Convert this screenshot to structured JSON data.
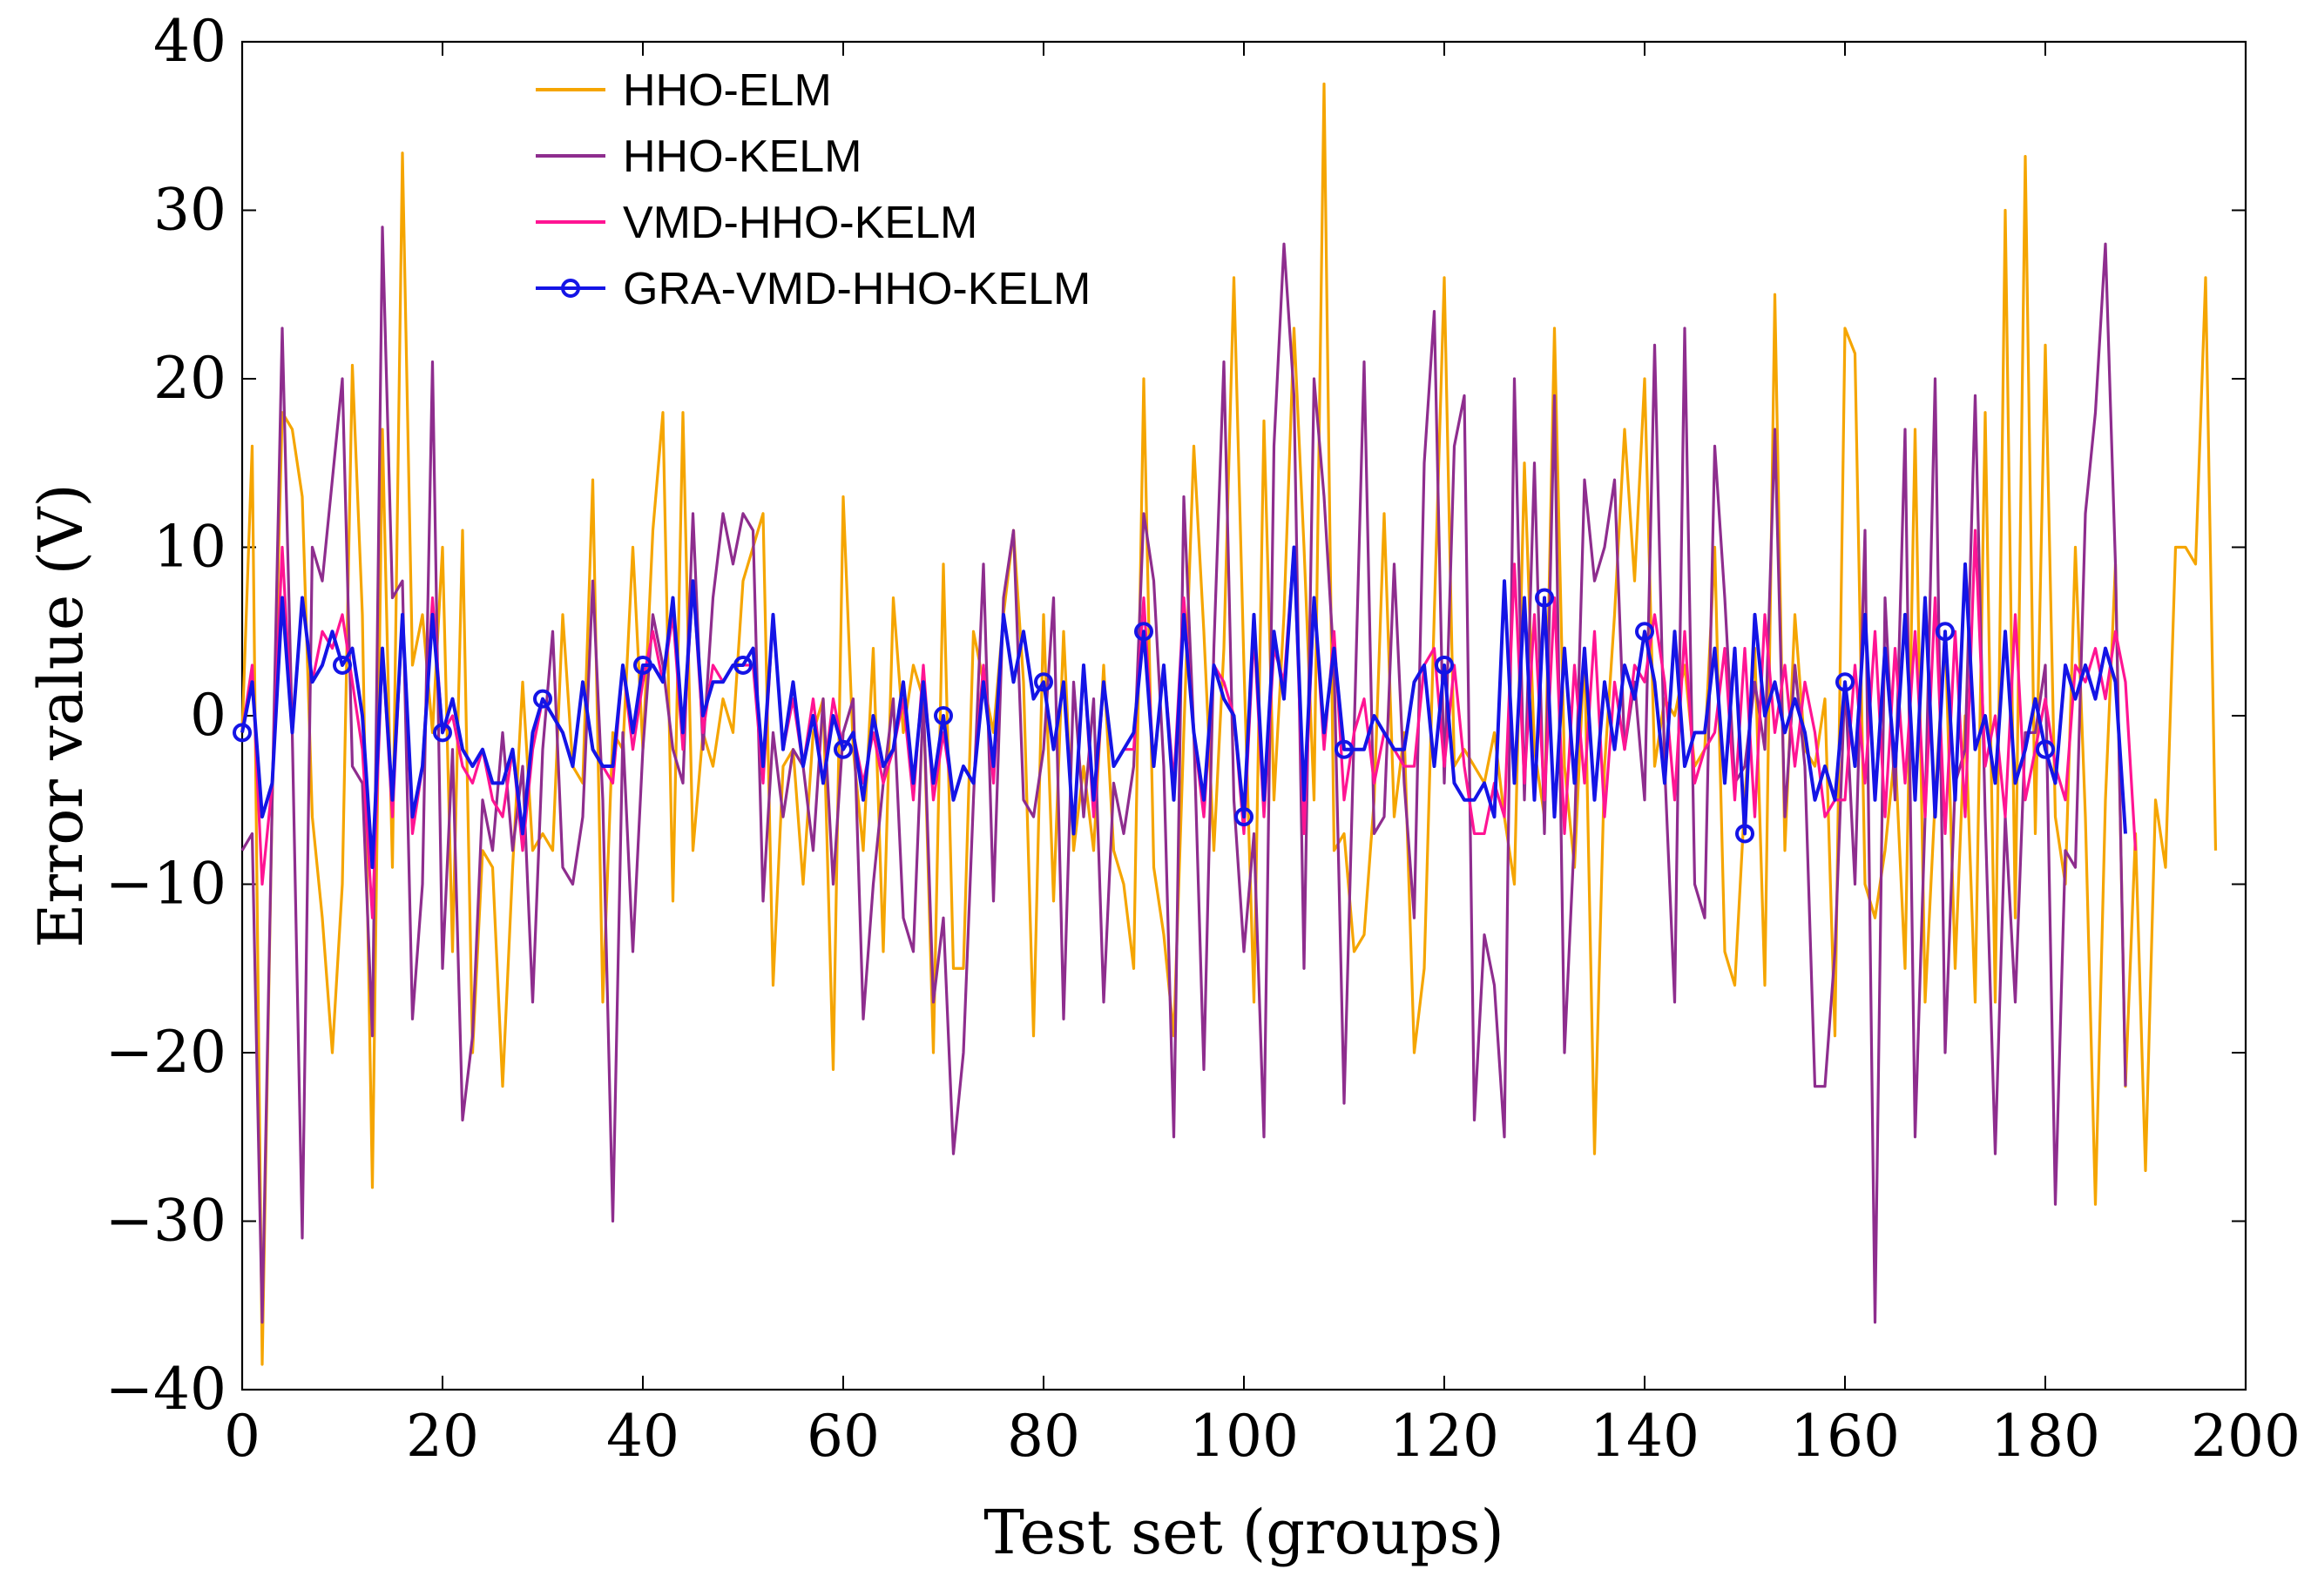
{
  "chart_data": {
    "type": "line",
    "title": "",
    "xlabel": "Test set (groups)",
    "ylabel": "Error value (V)",
    "xlim": [
      0,
      200
    ],
    "ylim": [
      -40,
      40
    ],
    "xticks": [
      0,
      20,
      40,
      60,
      80,
      100,
      120,
      140,
      160,
      180,
      200
    ],
    "yticks": [
      40,
      30,
      20,
      10,
      0,
      -10,
      -20,
      -30,
      -40
    ],
    "xtick_labels": [
      "0",
      "20",
      "40",
      "60",
      "80",
      "100",
      "120",
      "140",
      "160",
      "180",
      "200"
    ],
    "ytick_labels": [
      "40",
      "30",
      "20",
      "10",
      "0",
      "−10",
      "−20",
      "−30",
      "−40"
    ],
    "legend_position": "top-left",
    "series": [
      {
        "name": "HHO-ELM",
        "color": "#f5a500",
        "marker": "none",
        "values": [
          -1,
          16,
          -38.5,
          -5,
          18,
          17,
          13,
          -6,
          -12,
          -20,
          -10,
          20.8,
          6,
          -28,
          17,
          -9,
          33.4,
          3,
          6,
          -1,
          10,
          -14,
          11,
          -20,
          -8,
          -9,
          -22,
          -9,
          2,
          -8,
          -7,
          -8,
          6,
          -3,
          -4,
          14,
          -17,
          -1,
          -2,
          10,
          -2,
          11,
          18,
          -11,
          18,
          -8,
          -1,
          -3,
          1,
          -1,
          8,
          10,
          12,
          -16,
          -3,
          -2,
          -10,
          -1,
          1,
          -21,
          13,
          -2,
          -8,
          4,
          -14,
          7,
          -1,
          3,
          1,
          -20,
          9,
          -15,
          -15,
          5,
          2,
          -1,
          6,
          11,
          2,
          -19,
          6,
          -11,
          5,
          -8,
          -3,
          -8,
          3,
          -8,
          -10,
          -15,
          20,
          -9,
          -13,
          -19,
          -1,
          16,
          5,
          -8,
          4,
          26,
          3,
          -17,
          17.5,
          -5,
          6,
          23,
          10,
          -5,
          37.5,
          -8,
          -7,
          -14,
          -13,
          -5,
          12,
          -6,
          -1,
          -20,
          -15,
          6,
          26,
          -3,
          -2,
          -3,
          -4,
          -1,
          -6,
          -10,
          15,
          -2,
          -6,
          23,
          -3,
          -9,
          4,
          -26,
          -3,
          6,
          17,
          8,
          20,
          -3,
          1,
          0,
          3,
          -3,
          -2,
          10,
          -14,
          -16,
          -5,
          4,
          -16,
          25,
          -8,
          6,
          -2,
          -3,
          1,
          -19,
          23,
          21.5,
          -10,
          -12,
          -8,
          -2,
          -15,
          17,
          -17,
          -5,
          5,
          -15,
          0,
          -17,
          18,
          -17,
          30,
          -12,
          33.2,
          -7,
          22,
          -6,
          -10,
          10,
          -6,
          -29,
          -5,
          9,
          -22,
          -7,
          -27,
          -5,
          -9,
          10,
          10,
          9,
          26,
          -8
        ]
      },
      {
        "name": "HHO-KELM",
        "color": "#8e2d8e",
        "marker": "none",
        "values": [
          -8,
          -7,
          -36,
          -5,
          23,
          -1,
          -31,
          10,
          8,
          14,
          20,
          -3,
          -4,
          -19,
          29,
          7,
          8,
          -18,
          -10,
          21,
          -15,
          -2,
          -24,
          -19,
          -5,
          -8,
          -1,
          -8,
          -3,
          -17,
          -2,
          5,
          -9,
          -10,
          -6,
          8,
          -5,
          -30,
          -1,
          -14,
          -2,
          6,
          3,
          -2,
          -4,
          12,
          -2,
          7,
          12,
          9,
          12,
          11,
          -11,
          -1,
          -6,
          -2,
          -3,
          -8,
          1,
          -10,
          -1,
          1,
          -18,
          -10,
          -4,
          1,
          -12,
          -14,
          1,
          -17,
          -12,
          -26,
          -20,
          -5,
          9,
          -11,
          7,
          11,
          -5,
          -6,
          -2,
          7,
          -18,
          2,
          -6,
          1,
          -17,
          -4,
          -7,
          -3,
          12,
          8,
          -3,
          -25,
          13,
          -1,
          -21,
          4,
          21,
          -5,
          -14,
          -7,
          -25,
          16,
          28,
          19,
          -15,
          20,
          13,
          3,
          -23,
          -1,
          21,
          -7,
          -6,
          9,
          -4,
          -12,
          15,
          24,
          -4,
          16,
          19,
          -24,
          -13,
          -16,
          -25,
          20,
          -5,
          15,
          -7,
          19,
          -20,
          -7,
          14,
          8,
          10,
          14,
          -2,
          2,
          -5,
          22,
          -3,
          -17,
          23,
          -10,
          -12,
          16,
          7,
          -4,
          -3,
          2,
          -2,
          17,
          -6,
          3,
          -3,
          -22,
          -22,
          -14,
          2,
          -10,
          11,
          -36,
          7,
          -5,
          17,
          -25,
          -6,
          20,
          -20,
          -4,
          -2,
          19,
          -6,
          -26,
          -6,
          -17,
          -1,
          -1,
          3,
          -29,
          -8,
          -9,
          12,
          18,
          28,
          9,
          -22
        ]
      },
      {
        "name": "VMD-HHO-KELM",
        "color": "#ff1493",
        "marker": "none",
        "values": [
          -1,
          3,
          -10,
          -4,
          10,
          -1,
          7,
          2,
          5,
          4,
          6,
          2,
          -2,
          -12,
          4,
          -6,
          6,
          -7,
          -3,
          7,
          -1,
          0,
          -3,
          -4,
          -2,
          -5,
          -6,
          -2,
          -8,
          -2,
          1,
          0,
          -1,
          -3,
          2,
          -2,
          -3,
          -4,
          3,
          -2,
          2,
          5,
          2,
          6,
          -2,
          8,
          -1,
          3,
          2,
          3,
          3,
          3,
          -4,
          6,
          -2,
          1,
          -3,
          1,
          -4,
          1,
          -2,
          -1,
          -4,
          -1,
          -4,
          -2,
          1,
          -5,
          3,
          -5,
          -1,
          -5,
          -3,
          -4,
          3,
          -4,
          6,
          2,
          5,
          1,
          2,
          -2,
          2,
          -7,
          3,
          -6,
          2,
          -3,
          -2,
          -2,
          7,
          -3,
          3,
          -4,
          7,
          -1,
          -6,
          3,
          2,
          0,
          -7,
          5,
          -6,
          4,
          2,
          10,
          -7,
          7,
          -2,
          5,
          -5,
          -1,
          1,
          -4,
          -1,
          -2,
          -3,
          -3,
          3,
          4,
          -3,
          3,
          -3,
          -7,
          -7,
          -4,
          -6,
          9,
          -4,
          6,
          -5,
          7,
          -7,
          3,
          -4,
          5,
          -6,
          2,
          -2,
          3,
          2,
          6,
          2,
          -5,
          5,
          -4,
          -2,
          -1,
          4,
          -5,
          4,
          -6,
          6,
          -1,
          3,
          -3,
          2,
          -1,
          -6,
          -5,
          -5,
          3,
          -4,
          5,
          -6,
          4,
          -4,
          5,
          -6,
          7,
          -7,
          5,
          -6,
          11,
          -3,
          0,
          -6,
          6,
          -5,
          -2,
          1,
          -3,
          -5,
          3,
          2,
          4,
          1,
          5,
          2,
          -8
        ]
      },
      {
        "name": "GRA-VMD-HHO-KELM",
        "color": "#1414e6",
        "marker": "circle",
        "marker_every": 10,
        "values": [
          -1,
          2,
          -6,
          -4,
          7,
          -1,
          7,
          2,
          3,
          5,
          3,
          4,
          0,
          -9,
          4,
          -5,
          6,
          -6,
          -3,
          6,
          -1,
          1,
          -2,
          -3,
          -2,
          -4,
          -4,
          -2,
          -7,
          -1,
          1,
          0,
          -1,
          -3,
          2,
          -2,
          -3,
          -3,
          3,
          -1,
          3,
          3,
          2,
          7,
          -1,
          8,
          0,
          2,
          2,
          3,
          3,
          4,
          -3,
          6,
          -2,
          2,
          -3,
          0,
          -4,
          0,
          -2,
          -1,
          -5,
          0,
          -3,
          -2,
          2,
          -4,
          2,
          -4,
          0,
          -5,
          -3,
          -4,
          2,
          -3,
          6,
          2,
          5,
          1,
          2,
          -2,
          2,
          -7,
          3,
          -5,
          2,
          -3,
          -2,
          -1,
          5,
          -3,
          3,
          -5,
          6,
          -1,
          -5,
          3,
          1,
          0,
          -6,
          6,
          -5,
          5,
          1,
          10,
          -5,
          7,
          -1,
          4,
          -2,
          -2,
          -2,
          0,
          -1,
          -2,
          -2,
          2,
          3,
          -3,
          3,
          -4,
          -5,
          -5,
          -4,
          -6,
          8,
          -4,
          7,
          -5,
          7,
          -6,
          4,
          -4,
          4,
          -5,
          2,
          -2,
          3,
          1,
          5,
          2,
          -4,
          5,
          -3,
          -1,
          -1,
          4,
          -4,
          4,
          -7,
          6,
          0,
          2,
          -1,
          1,
          -1,
          -5,
          -3,
          -5,
          2,
          -3,
          6,
          -5,
          4,
          -3,
          6,
          -5,
          7,
          -6,
          5,
          -5,
          9,
          -2,
          0,
          -4,
          5,
          -4,
          -2,
          1,
          -2,
          -4,
          3,
          1,
          3,
          1,
          4,
          2,
          -7
        ]
      }
    ]
  }
}
